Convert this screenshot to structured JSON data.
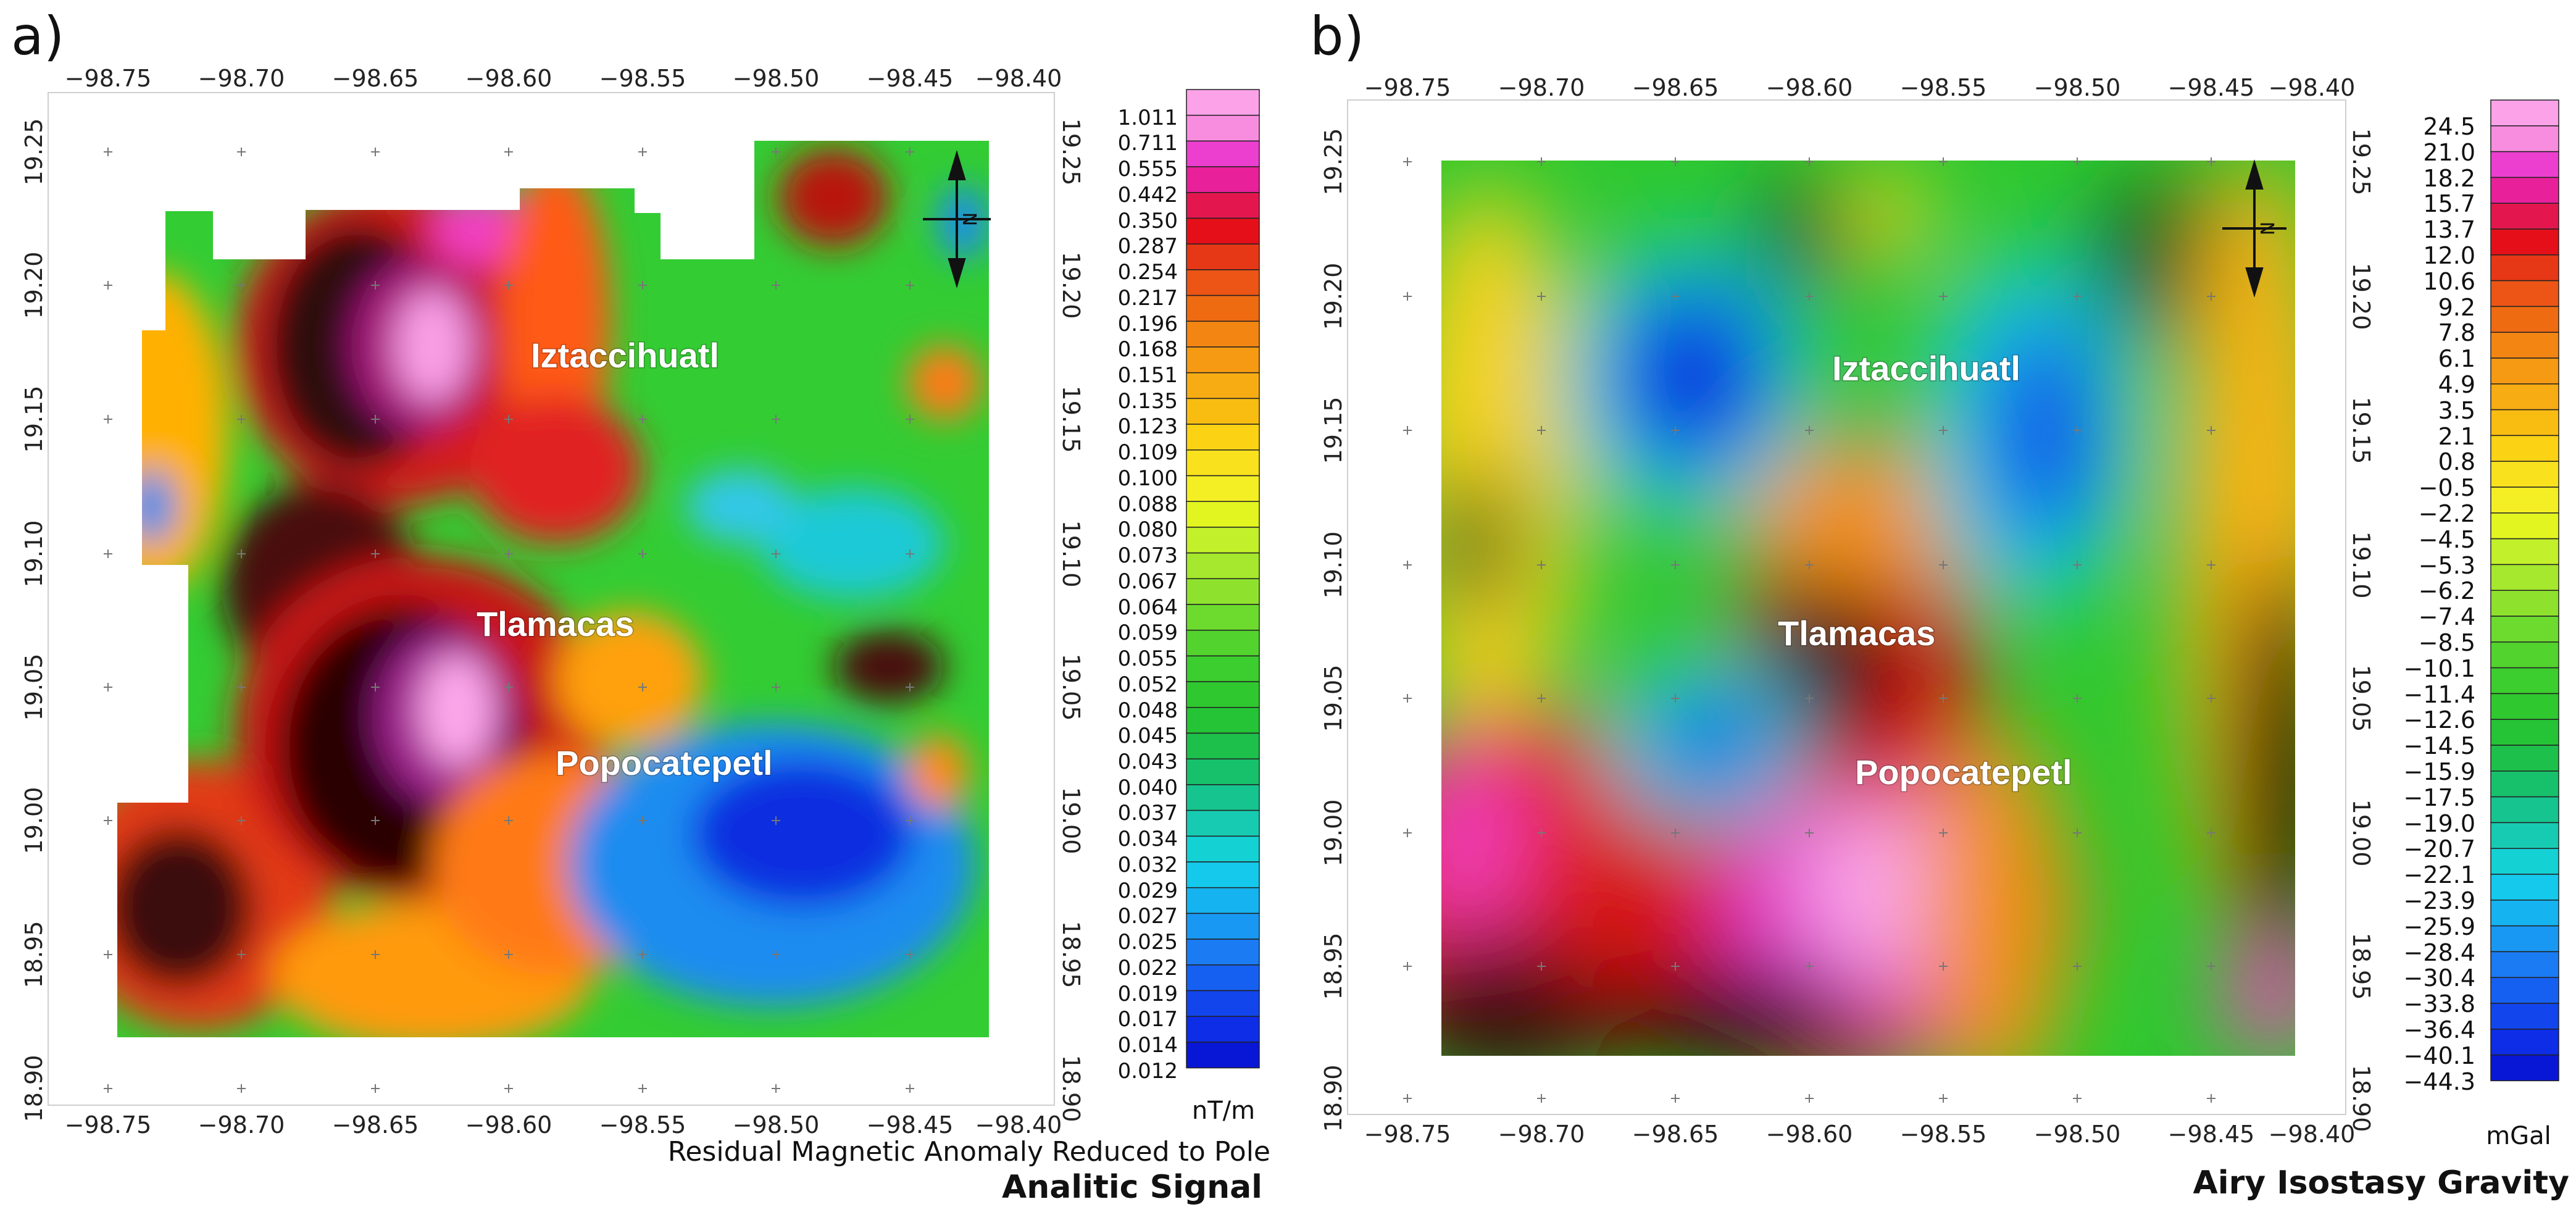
{
  "panels": [
    {
      "label": "a)",
      "x_ticks": [
        "−98.75",
        "−98.70",
        "−98.65",
        "−98.60",
        "−98.55",
        "−98.50",
        "−98.45",
        "−98.40"
      ],
      "y_ticks": [
        "19.25",
        "19.20",
        "19.15",
        "19.10",
        "19.05",
        "19.00",
        "18.95",
        "18.90"
      ],
      "places": [
        "Iztaccihuatl",
        "Tlamacas",
        "Popocatepetl"
      ],
      "colorbar": {
        "unit": "nT/m",
        "labels": [
          "1.011",
          "0.711",
          "0.555",
          "0.442",
          "0.350",
          "0.287",
          "0.254",
          "0.217",
          "0.196",
          "0.168",
          "0.151",
          "0.135",
          "0.123",
          "0.109",
          "0.100",
          "0.088",
          "0.080",
          "0.073",
          "0.067",
          "0.064",
          "0.059",
          "0.055",
          "0.052",
          "0.048",
          "0.045",
          "0.043",
          "0.040",
          "0.037",
          "0.034",
          "0.032",
          "0.029",
          "0.027",
          "0.025",
          "0.022",
          "0.019",
          "0.017",
          "0.014",
          "0.012"
        ]
      },
      "subtitle": "Residual Magnetic Anomaly Reduced to Pole",
      "title": "Analitic Signal",
      "north": "N"
    },
    {
      "label": "b)",
      "x_ticks": [
        "−98.75",
        "−98.70",
        "−98.65",
        "−98.60",
        "−98.55",
        "−98.50",
        "−98.45",
        "−98.40"
      ],
      "y_ticks": [
        "19.25",
        "19.20",
        "19.15",
        "19.10",
        "19.05",
        "19.00",
        "18.95",
        "18.90"
      ],
      "places": [
        "Iztaccihuatl",
        "Tlamacas",
        "Popocatepetl"
      ],
      "colorbar": {
        "unit": "mGal",
        "labels": [
          "24.5",
          "21.0",
          "18.2",
          "15.7",
          "13.7",
          "12.0",
          "10.6",
          "9.2",
          "7.8",
          "6.1",
          "4.9",
          "3.5",
          "2.1",
          "0.8",
          "−0.5",
          "−2.2",
          "−4.5",
          "−5.3",
          "−6.2",
          "−7.4",
          "−8.5",
          "−10.1",
          "−11.4",
          "−12.6",
          "−14.5",
          "−15.9",
          "−17.5",
          "−19.0",
          "−20.7",
          "−22.1",
          "−23.9",
          "−25.9",
          "−28.4",
          "−30.4",
          "−33.8",
          "−36.4",
          "−40.1",
          "−44.3"
        ]
      },
      "title": "Airy Isostasy Gravity",
      "north": "N"
    }
  ],
  "palette": [
    "#fca2e8",
    "#f88de0",
    "#ec3fcf",
    "#e8209a",
    "#e3174e",
    "#e50f1a",
    "#e63716",
    "#ec5516",
    "#ef6b12",
    "#f38512",
    "#f59a12",
    "#f7ac13",
    "#f9bd12",
    "#fbd214",
    "#f9e21d",
    "#f4ee25",
    "#e2f521",
    "#c2f02a",
    "#a5e82d",
    "#8ee22e",
    "#6cdb2e",
    "#52d32e",
    "#3ccd2f",
    "#2fc82f",
    "#25c336",
    "#1dc04a",
    "#17c16b",
    "#16c48f",
    "#17cbb2",
    "#14d1d4",
    "#14c9ec",
    "#16b3f1",
    "#1898f3",
    "#1a7bf3",
    "#1660f1",
    "#1245ec",
    "#0d2de6",
    "#0816d6"
  ]
}
